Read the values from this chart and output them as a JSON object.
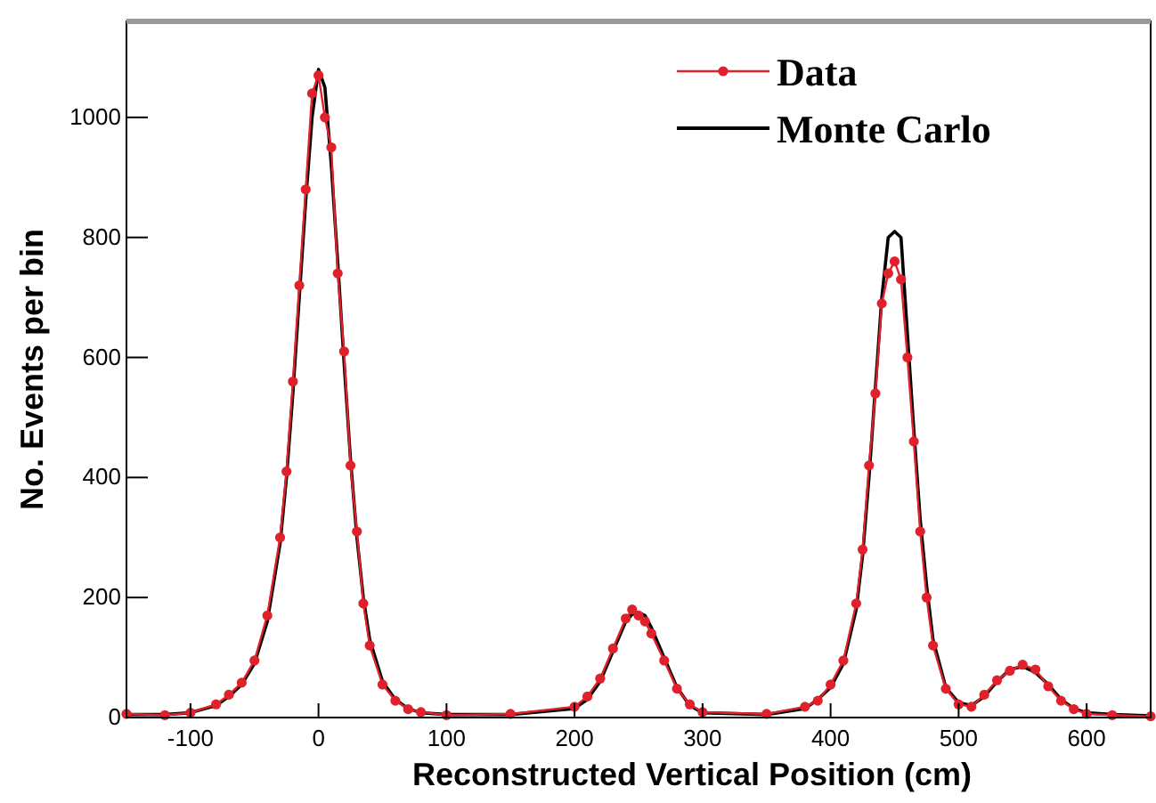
{
  "chart_data": {
    "type": "line",
    "xlabel": "Reconstructed Vertical Position (cm)",
    "ylabel": "No. Events per bin",
    "xlim": [
      -150,
      650
    ],
    "ylim": [
      0,
      1160
    ],
    "xticks": [
      -100,
      0,
      100,
      200,
      300,
      400,
      500,
      600
    ],
    "yticks": [
      0,
      200,
      400,
      600,
      800,
      1000
    ],
    "legend": "top right",
    "grid": false,
    "series": [
      {
        "name": "Data",
        "color": "#e0202a",
        "marker": "circle",
        "x": [
          -150,
          -120,
          -100,
          -80,
          -70,
          -60,
          -50,
          -40,
          -30,
          -25,
          -20,
          -15,
          -10,
          -5,
          0,
          5,
          10,
          15,
          20,
          25,
          30,
          35,
          40,
          50,
          60,
          70,
          80,
          100,
          150,
          200,
          210,
          220,
          230,
          240,
          245,
          250,
          255,
          260,
          270,
          280,
          290,
          300,
          350,
          380,
          390,
          400,
          410,
          420,
          425,
          430,
          435,
          440,
          445,
          450,
          455,
          460,
          465,
          470,
          475,
          480,
          490,
          500,
          510,
          520,
          530,
          540,
          550,
          560,
          570,
          580,
          590,
          600,
          620,
          650
        ],
        "values": [
          6,
          4,
          8,
          22,
          38,
          58,
          95,
          170,
          300,
          410,
          560,
          720,
          880,
          1040,
          1070,
          1000,
          950,
          740,
          610,
          420,
          310,
          190,
          120,
          55,
          28,
          14,
          9,
          4,
          6,
          18,
          35,
          65,
          115,
          165,
          180,
          170,
          160,
          140,
          95,
          48,
          22,
          9,
          6,
          18,
          28,
          55,
          95,
          190,
          280,
          420,
          540,
          690,
          740,
          760,
          730,
          600,
          460,
          310,
          200,
          120,
          48,
          22,
          18,
          38,
          62,
          78,
          88,
          80,
          52,
          28,
          14,
          6,
          4,
          2
        ]
      },
      {
        "name": "Monte Carlo",
        "color": "#000000",
        "marker": "none",
        "x": [
          -150,
          -120,
          -100,
          -80,
          -70,
          -60,
          -50,
          -40,
          -30,
          -25,
          -20,
          -15,
          -10,
          -5,
          0,
          5,
          10,
          15,
          20,
          25,
          30,
          35,
          40,
          50,
          60,
          70,
          80,
          100,
          150,
          200,
          210,
          220,
          230,
          240,
          245,
          250,
          255,
          260,
          270,
          280,
          290,
          300,
          350,
          380,
          390,
          400,
          410,
          420,
          425,
          430,
          435,
          440,
          445,
          450,
          455,
          460,
          465,
          470,
          475,
          480,
          490,
          500,
          510,
          520,
          530,
          540,
          550,
          560,
          570,
          580,
          590,
          600,
          620,
          650
        ],
        "values": [
          5,
          5,
          8,
          20,
          35,
          55,
          90,
          160,
          290,
          400,
          540,
          700,
          860,
          1000,
          1080,
          1050,
          920,
          760,
          590,
          430,
          300,
          200,
          130,
          60,
          30,
          15,
          8,
          5,
          5,
          15,
          30,
          60,
          110,
          160,
          172,
          175,
          170,
          150,
          100,
          50,
          20,
          8,
          5,
          15,
          30,
          50,
          90,
          180,
          270,
          400,
          550,
          700,
          800,
          810,
          800,
          640,
          480,
          330,
          220,
          130,
          50,
          25,
          20,
          35,
          60,
          80,
          85,
          75,
          55,
          30,
          15,
          8,
          5,
          3
        ]
      }
    ]
  }
}
